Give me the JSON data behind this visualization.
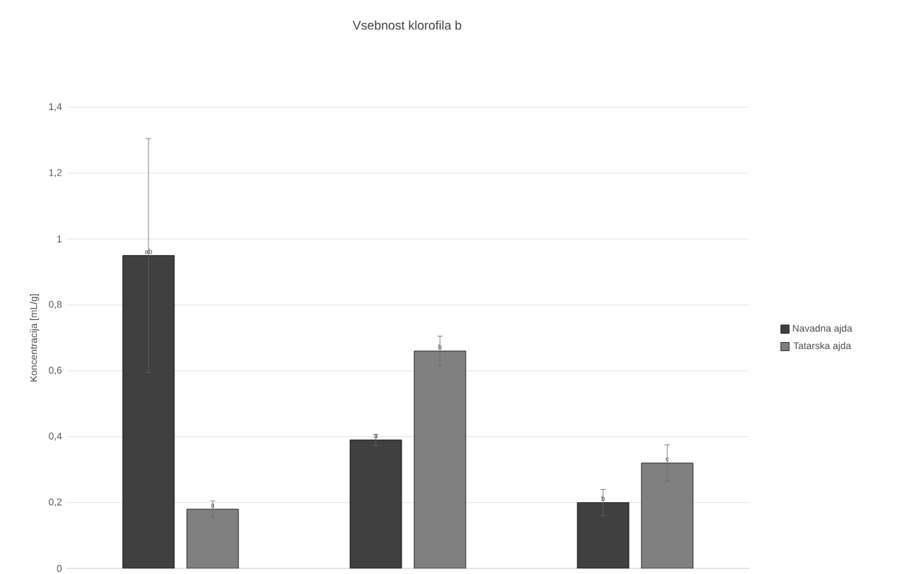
{
  "chart_data": {
    "type": "bar",
    "title": "Vsebnost klorofila b",
    "ylabel": "Koncentracija [mL/g]",
    "categories": [
      null,
      null,
      null
    ],
    "series": [
      {
        "name": "Navadna ajda",
        "color": "#404040",
        "values": [
          0.95,
          0.39,
          0.2
        ],
        "errors": [
          0.355,
          0.017,
          0.04
        ],
        "value_labels": [
          "ab",
          "a",
          "b"
        ]
      },
      {
        "name": "Tatarska ajda",
        "color": "#808080",
        "values": [
          0.18,
          0.66,
          0.32
        ],
        "errors": [
          0.025,
          0.045,
          0.055
        ],
        "value_labels": [
          "a",
          "b",
          "c"
        ]
      }
    ],
    "ylim": [
      0,
      1.4
    ],
    "yticks": [
      0,
      {
        "value": 0.2,
        "label": "0,2"
      },
      {
        "value": 0.4,
        "label": "0,4"
      },
      {
        "value": 0.6,
        "label": "0,6"
      },
      {
        "value": 0.8,
        "label": "0,8"
      },
      1,
      {
        "value": 1.2,
        "label": "1,2"
      },
      {
        "value": 1.4,
        "label": "1,4"
      }
    ],
    "grid": "y",
    "legend": "right"
  }
}
